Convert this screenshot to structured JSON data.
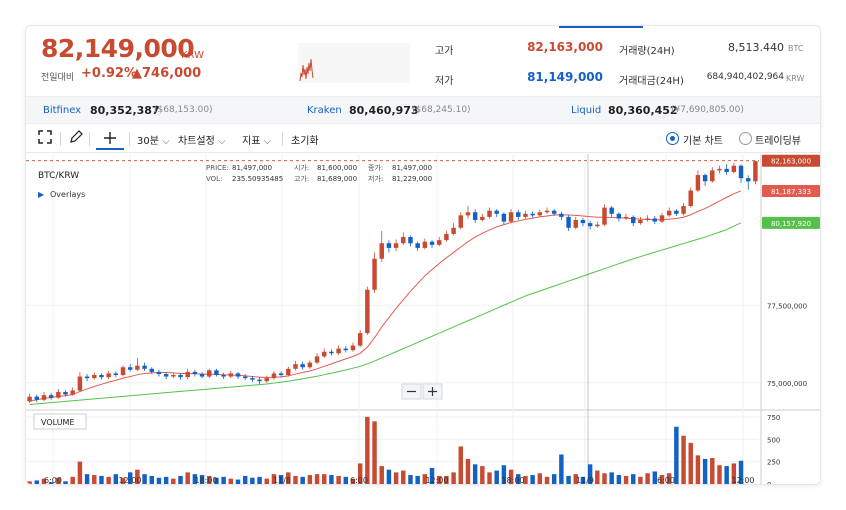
{
  "header": {
    "price": "82,149,000",
    "unit": "KRW",
    "change_label": "전일대비",
    "change_pct": "+0.92%",
    "change_amt": "▲746,000",
    "high_label": "고가",
    "high_value": "82,163,000",
    "low_label": "저가",
    "low_value": "81,149,000",
    "volume_label": "거래량(24H)",
    "volume_value": "8,513.440",
    "volume_unit": "BTC",
    "amount_label": "거래대금(24H)",
    "amount_value": "684,940,402,964",
    "amount_unit": "KRW"
  },
  "exchanges": [
    {
      "name": "Bitfinex",
      "price": "80,352,387",
      "usd": "($68,153.00)"
    },
    {
      "name": "Kraken",
      "price": "80,460,973",
      "usd": "($68,245.10)"
    },
    {
      "name": "Liquid",
      "price": "80,360,452",
      "usd": "(¥7,690,805.00)"
    }
  ],
  "toolbar": {
    "interval": "30분",
    "chart_settings": "차트설정",
    "indicators": "지표",
    "reset": "초기화",
    "basic_chart": "기본 차트",
    "tradingview": "트레이딩뷰"
  },
  "overlay": {
    "pair": "BTC/KRW",
    "overlays_label": "Overlays",
    "price_label": "PRICE:",
    "price_value": "81,497,000",
    "vol_label": "VOL:",
    "vol_value": "235.50935485",
    "open_label": "시가:",
    "open_value": "81,600,000",
    "high_label": "고가:",
    "high_value": "81,689,000",
    "close_label": "종가:",
    "close_value": "81,497,000",
    "low_label": "저가:",
    "low_value": "81,229,000",
    "volume_pane_label": "VOLUME"
  },
  "colors": {
    "up": "#c84a31",
    "down": "#1261c4",
    "ma_short": "#e35b4f",
    "ma_long": "#55c04a"
  },
  "chart_data": {
    "type": "candlestick",
    "x_ticks": [
      "6:00",
      "12:00",
      "18:00",
      "11/8",
      "6:00",
      "12:00",
      "18:00",
      "11/9",
      "6:00",
      "12:00"
    ],
    "y_ticks": [
      "77,500,000",
      "75,000,000"
    ],
    "y_tick_values": [
      77500000,
      75000000
    ],
    "volume_ticks": [
      "750",
      "500",
      "250",
      "0"
    ],
    "volume_tick_values": [
      750,
      500,
      250,
      0
    ],
    "price_tags": [
      {
        "label": "82,163,000",
        "value": 82163000,
        "color": "#c84a31",
        "dashed": true
      },
      {
        "label": "81,187,333",
        "value": 81187333,
        "color": "#e35b4f"
      },
      {
        "label": "80,157,920",
        "value": 80157920,
        "color": "#55c04a"
      }
    ],
    "candles": [
      {
        "o": 74400000,
        "c": 74550000,
        "h": 74650000,
        "l": 74350000
      },
      {
        "o": 74550000,
        "c": 74450000,
        "h": 74620000,
        "l": 74380000
      },
      {
        "o": 74450000,
        "c": 74600000,
        "h": 74700000,
        "l": 74400000
      },
      {
        "o": 74600000,
        "c": 74520000,
        "h": 74680000,
        "l": 74450000
      },
      {
        "o": 74520000,
        "c": 74700000,
        "h": 74800000,
        "l": 74480000
      },
      {
        "o": 74700000,
        "c": 74620000,
        "h": 74760000,
        "l": 74560000
      },
      {
        "o": 74620000,
        "c": 74750000,
        "h": 74850000,
        "l": 74580000
      },
      {
        "o": 74750000,
        "c": 75200000,
        "h": 75350000,
        "l": 74700000
      },
      {
        "o": 75200000,
        "c": 75150000,
        "h": 75280000,
        "l": 75050000
      },
      {
        "o": 75150000,
        "c": 75250000,
        "h": 75330000,
        "l": 75100000
      },
      {
        "o": 75250000,
        "c": 75180000,
        "h": 75300000,
        "l": 75100000
      },
      {
        "o": 75180000,
        "c": 75300000,
        "h": 75380000,
        "l": 75120000
      },
      {
        "o": 75300000,
        "c": 75250000,
        "h": 75360000,
        "l": 75180000
      },
      {
        "o": 75250000,
        "c": 75500000,
        "h": 75560000,
        "l": 75200000
      },
      {
        "o": 75500000,
        "c": 75420000,
        "h": 75600000,
        "l": 75360000
      },
      {
        "o": 75420000,
        "c": 75550000,
        "h": 75800000,
        "l": 75380000
      },
      {
        "o": 75550000,
        "c": 75450000,
        "h": 75650000,
        "l": 75380000
      },
      {
        "o": 75450000,
        "c": 75350000,
        "h": 75500000,
        "l": 75280000
      },
      {
        "o": 75350000,
        "c": 75280000,
        "h": 75420000,
        "l": 75200000
      },
      {
        "o": 75280000,
        "c": 75200000,
        "h": 75340000,
        "l": 75120000
      },
      {
        "o": 75200000,
        "c": 75250000,
        "h": 75320000,
        "l": 75150000
      },
      {
        "o": 75250000,
        "c": 75180000,
        "h": 75300000,
        "l": 75100000
      },
      {
        "o": 75180000,
        "c": 75350000,
        "h": 75450000,
        "l": 75120000
      },
      {
        "o": 75350000,
        "c": 75280000,
        "h": 75420000,
        "l": 75200000
      },
      {
        "o": 75280000,
        "c": 75200000,
        "h": 75350000,
        "l": 75150000
      },
      {
        "o": 75200000,
        "c": 75400000,
        "h": 75450000,
        "l": 75150000
      },
      {
        "o": 75400000,
        "c": 75250000,
        "h": 75450000,
        "l": 75200000
      },
      {
        "o": 75250000,
        "c": 75200000,
        "h": 75320000,
        "l": 75120000
      },
      {
        "o": 75200000,
        "c": 75300000,
        "h": 75380000,
        "l": 75150000
      },
      {
        "o": 75300000,
        "c": 75200000,
        "h": 75350000,
        "l": 75120000
      },
      {
        "o": 75200000,
        "c": 75150000,
        "h": 75280000,
        "l": 75080000
      },
      {
        "o": 75150000,
        "c": 75100000,
        "h": 75220000,
        "l": 75020000
      },
      {
        "o": 75100000,
        "c": 75050000,
        "h": 75180000,
        "l": 74950000
      },
      {
        "o": 75050000,
        "c": 75150000,
        "h": 75230000,
        "l": 75000000
      },
      {
        "o": 75150000,
        "c": 75300000,
        "h": 75380000,
        "l": 75100000
      },
      {
        "o": 75300000,
        "c": 75250000,
        "h": 75370000,
        "l": 75180000
      },
      {
        "o": 75250000,
        "c": 75450000,
        "h": 75520000,
        "l": 75200000
      },
      {
        "o": 75450000,
        "c": 75600000,
        "h": 75700000,
        "l": 75400000
      },
      {
        "o": 75600000,
        "c": 75500000,
        "h": 75680000,
        "l": 75420000
      },
      {
        "o": 75500000,
        "c": 75650000,
        "h": 75720000,
        "l": 75450000
      },
      {
        "o": 75650000,
        "c": 75850000,
        "h": 75950000,
        "l": 75600000
      },
      {
        "o": 75850000,
        "c": 76000000,
        "h": 76100000,
        "l": 75800000
      },
      {
        "o": 76000000,
        "c": 75950000,
        "h": 76080000,
        "l": 75880000
      },
      {
        "o": 75950000,
        "c": 76100000,
        "h": 76200000,
        "l": 75900000
      },
      {
        "o": 76100000,
        "c": 76050000,
        "h": 76180000,
        "l": 75980000
      },
      {
        "o": 76050000,
        "c": 76200000,
        "h": 76300000,
        "l": 76000000
      },
      {
        "o": 76200000,
        "c": 76600000,
        "h": 76700000,
        "l": 76150000
      },
      {
        "o": 76600000,
        "c": 78000000,
        "h": 78100000,
        "l": 76550000
      },
      {
        "o": 78000000,
        "c": 79000000,
        "h": 79200000,
        "l": 77900000
      },
      {
        "o": 79000000,
        "c": 79500000,
        "h": 79900000,
        "l": 78900000
      },
      {
        "o": 79500000,
        "c": 79350000,
        "h": 79600000,
        "l": 79200000
      },
      {
        "o": 79350000,
        "c": 79500000,
        "h": 79620000,
        "l": 79250000
      },
      {
        "o": 79500000,
        "c": 79700000,
        "h": 79850000,
        "l": 79450000
      },
      {
        "o": 79700000,
        "c": 79500000,
        "h": 79750000,
        "l": 79400000
      },
      {
        "o": 79500000,
        "c": 79350000,
        "h": 79550000,
        "l": 79250000
      },
      {
        "o": 79350000,
        "c": 79550000,
        "h": 79650000,
        "l": 79300000
      },
      {
        "o": 79550000,
        "c": 79450000,
        "h": 79600000,
        "l": 79350000
      },
      {
        "o": 79450000,
        "c": 79600000,
        "h": 79700000,
        "l": 79400000
      },
      {
        "o": 79600000,
        "c": 79800000,
        "h": 79900000,
        "l": 79550000
      },
      {
        "o": 79800000,
        "c": 80000000,
        "h": 80150000,
        "l": 79750000
      },
      {
        "o": 80000000,
        "c": 80400000,
        "h": 80500000,
        "l": 79950000
      },
      {
        "o": 80400000,
        "c": 80500000,
        "h": 80700000,
        "l": 80300000
      },
      {
        "o": 80500000,
        "c": 80250000,
        "h": 80600000,
        "l": 80150000
      },
      {
        "o": 80250000,
        "c": 80350000,
        "h": 80450000,
        "l": 80200000
      },
      {
        "o": 80350000,
        "c": 80550000,
        "h": 80650000,
        "l": 80300000
      },
      {
        "o": 80550000,
        "c": 80450000,
        "h": 80600000,
        "l": 80350000
      },
      {
        "o": 80450000,
        "c": 80200000,
        "h": 80500000,
        "l": 80100000
      },
      {
        "o": 80200000,
        "c": 80500000,
        "h": 80600000,
        "l": 80150000
      },
      {
        "o": 80500000,
        "c": 80350000,
        "h": 80580000,
        "l": 80250000
      },
      {
        "o": 80350000,
        "c": 80450000,
        "h": 80550000,
        "l": 80300000
      },
      {
        "o": 80450000,
        "c": 80400000,
        "h": 80520000,
        "l": 80320000
      },
      {
        "o": 80400000,
        "c": 80500000,
        "h": 80580000,
        "l": 80350000
      },
      {
        "o": 80500000,
        "c": 80550000,
        "h": 80650000,
        "l": 80450000
      },
      {
        "o": 80550000,
        "c": 80450000,
        "h": 80600000,
        "l": 80380000
      },
      {
        "o": 80450000,
        "c": 80350000,
        "h": 80520000,
        "l": 80250000
      },
      {
        "o": 80350000,
        "c": 80000000,
        "h": 80400000,
        "l": 79900000
      },
      {
        "o": 80000000,
        "c": 80250000,
        "h": 80350000,
        "l": 79950000
      },
      {
        "o": 80250000,
        "c": 80150000,
        "h": 80320000,
        "l": 80050000
      },
      {
        "o": 80150000,
        "c": 80050000,
        "h": 80220000,
        "l": 79950000
      },
      {
        "o": 80050000,
        "c": 80100000,
        "h": 80200000,
        "l": 80000000
      },
      {
        "o": 80100000,
        "c": 80650000,
        "h": 80750000,
        "l": 80050000
      },
      {
        "o": 80650000,
        "c": 80450000,
        "h": 80700000,
        "l": 80350000
      },
      {
        "o": 80450000,
        "c": 80300000,
        "h": 80500000,
        "l": 80200000
      },
      {
        "o": 80300000,
        "c": 80350000,
        "h": 80450000,
        "l": 80250000
      },
      {
        "o": 80350000,
        "c": 80150000,
        "h": 80400000,
        "l": 80050000
      },
      {
        "o": 80150000,
        "c": 80250000,
        "h": 80350000,
        "l": 80100000
      },
      {
        "o": 80250000,
        "c": 80300000,
        "h": 80400000,
        "l": 80200000
      },
      {
        "o": 80300000,
        "c": 80200000,
        "h": 80380000,
        "l": 80120000
      },
      {
        "o": 80200000,
        "c": 80400000,
        "h": 80480000,
        "l": 80150000
      },
      {
        "o": 80400000,
        "c": 80550000,
        "h": 80650000,
        "l": 80350000
      },
      {
        "o": 80550000,
        "c": 80450000,
        "h": 80600000,
        "l": 80380000
      },
      {
        "o": 80450000,
        "c": 80700000,
        "h": 80800000,
        "l": 80400000
      },
      {
        "o": 80700000,
        "c": 81200000,
        "h": 81300000,
        "l": 80650000
      },
      {
        "o": 81200000,
        "c": 81700000,
        "h": 81850000,
        "l": 81150000
      },
      {
        "o": 81700000,
        "c": 81500000,
        "h": 81750000,
        "l": 81350000
      },
      {
        "o": 81500000,
        "c": 81850000,
        "h": 81950000,
        "l": 81450000
      },
      {
        "o": 81850000,
        "c": 81900000,
        "h": 82000000,
        "l": 81750000
      },
      {
        "o": 81900000,
        "c": 81800000,
        "h": 82050000,
        "l": 81700000
      },
      {
        "o": 81800000,
        "c": 82000000,
        "h": 82100000,
        "l": 81750000
      },
      {
        "o": 82000000,
        "c": 81600000,
        "h": 82050000,
        "l": 81450000
      },
      {
        "o": 81600000,
        "c": 81497000,
        "h": 81689000,
        "l": 81229000
      },
      {
        "o": 81497000,
        "c": 82149000,
        "h": 82163000,
        "l": 81400000
      }
    ],
    "volumes": [
      30,
      40,
      60,
      20,
      70,
      30,
      80,
      250,
      110,
      100,
      90,
      80,
      110,
      70,
      130,
      160,
      110,
      90,
      70,
      80,
      60,
      90,
      130,
      110,
      100,
      90,
      70,
      80,
      60,
      50,
      90,
      70,
      80,
      60,
      110,
      100,
      130,
      90,
      80,
      100,
      110,
      110,
      100,
      90,
      80,
      60,
      230,
      750,
      700,
      200,
      160,
      130,
      150,
      100,
      90,
      110,
      180,
      90,
      90,
      130,
      420,
      280,
      220,
      200,
      130,
      150,
      210,
      160,
      110,
      90,
      100,
      120,
      80,
      110,
      330,
      90,
      110,
      80,
      220,
      150,
      120,
      130,
      100,
      90,
      110,
      80,
      120,
      140,
      100,
      120,
      640,
      540,
      460,
      320,
      280,
      290,
      210,
      200,
      230,
      260
    ],
    "ma_short": [
      74400000,
      74450000,
      74500000,
      74520000,
      74560000,
      74580000,
      74620000,
      74720000,
      74800000,
      74880000,
      74950000,
      75020000,
      75080000,
      75150000,
      75200000,
      75260000,
      75300000,
      75320000,
      75330000,
      75330000,
      75320000,
      75300000,
      75300000,
      75290000,
      75280000,
      75280000,
      75270000,
      75260000,
      75250000,
      75240000,
      75220000,
      75200000,
      75180000,
      75170000,
      75180000,
      75190000,
      75220000,
      75280000,
      75330000,
      75380000,
      75450000,
      75530000,
      75610000,
      75690000,
      75770000,
      75850000,
      75950000,
      76150000,
      76450000,
      76800000,
      77100000,
      77400000,
      77680000,
      77950000,
      78200000,
      78450000,
      78650000,
      78850000,
      79030000,
      79200000,
      79380000,
      79550000,
      79700000,
      79820000,
      79930000,
      80030000,
      80100000,
      80170000,
      80220000,
      80270000,
      80310000,
      80350000,
      80380000,
      80410000,
      80420000,
      80410000,
      80400000,
      80380000,
      80360000,
      80340000,
      80340000,
      80330000,
      80320000,
      80310000,
      80290000,
      80280000,
      80270000,
      80260000,
      80260000,
      80280000,
      80300000,
      80340000,
      80420000,
      80530000,
      80620000,
      80740000,
      80860000,
      80980000,
      81100000,
      81187333
    ],
    "ma_long": [
      74300000,
      74320000,
      74340000,
      74360000,
      74380000,
      74400000,
      74420000,
      74440000,
      74460000,
      74480000,
      74500000,
      74520000,
      74540000,
      74560000,
      74580000,
      74600000,
      74620000,
      74640000,
      74660000,
      74680000,
      74700000,
      74720000,
      74740000,
      74760000,
      74780000,
      74800000,
      74820000,
      74840000,
      74860000,
      74880000,
      74900000,
      74920000,
      74940000,
      74960000,
      74990000,
      75020000,
      75050000,
      75090000,
      75130000,
      75170000,
      75210000,
      75260000,
      75310000,
      75360000,
      75410000,
      75470000,
      75530000,
      75610000,
      75700000,
      75800000,
      75900000,
      76000000,
      76100000,
      76200000,
      76300000,
      76400000,
      76500000,
      76600000,
      76700000,
      76800000,
      76900000,
      77000000,
      77100000,
      77200000,
      77300000,
      77400000,
      77500000,
      77600000,
      77700000,
      77800000,
      77880000,
      77960000,
      78040000,
      78120000,
      78200000,
      78280000,
      78360000,
      78440000,
      78520000,
      78600000,
      78680000,
      78760000,
      78840000,
      78920000,
      79000000,
      79070000,
      79140000,
      79210000,
      79280000,
      79350000,
      79420000,
      79490000,
      79560000,
      79630000,
      79700000,
      79780000,
      79860000,
      79940000,
      80050000,
      80157920
    ]
  }
}
